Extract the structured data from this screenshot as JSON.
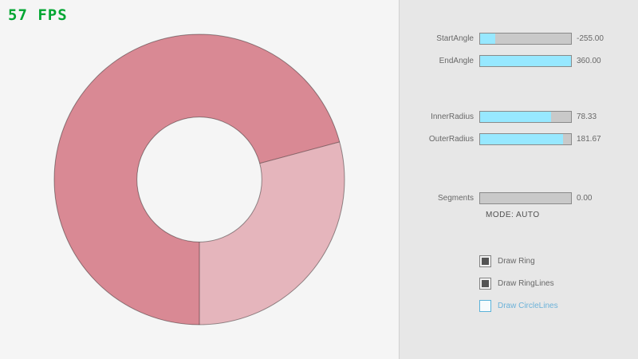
{
  "fps": {
    "label": "57 FPS",
    "color": "#02A632"
  },
  "ring": {
    "start_angle": -255,
    "end_angle": 360,
    "inner_radius": 78.33,
    "outer_radius": 181.67,
    "colors": {
      "single_pass": "#E5B5BC",
      "double_pass": "#D98994",
      "outline": "rgba(0,0,0,0.4)"
    }
  },
  "panel": {
    "sliders": [
      {
        "label": "StartAngle",
        "value": "-255.00",
        "fill_pct": 17
      },
      {
        "label": "EndAngle",
        "value": "360.00",
        "fill_pct": 100
      },
      {
        "label": "InnerRadius",
        "value": "78.33",
        "fill_pct": 78
      },
      {
        "label": "OuterRadius",
        "value": "181.67",
        "fill_pct": 91
      },
      {
        "label": "Segments",
        "value": "0.00",
        "fill_pct": 0
      }
    ],
    "mode_text": "MODE: AUTO",
    "checkboxes": [
      {
        "label": "Draw Ring",
        "checked": true,
        "focused": false
      },
      {
        "label": "Draw RingLines",
        "checked": true,
        "focused": false
      },
      {
        "label": "Draw CircleLines",
        "checked": false,
        "focused": true
      }
    ]
  },
  "colors": {
    "canvas_bg": "#F5F5F5",
    "panel_bg": "#E7E7E7",
    "slider_fill": "#97E8FF",
    "slider_track": "#C9C9C9",
    "control_border": "#8A8A8A",
    "text_gray": "#686868",
    "check_mark": "#545454",
    "focused_blue": "#5BB2D9"
  }
}
